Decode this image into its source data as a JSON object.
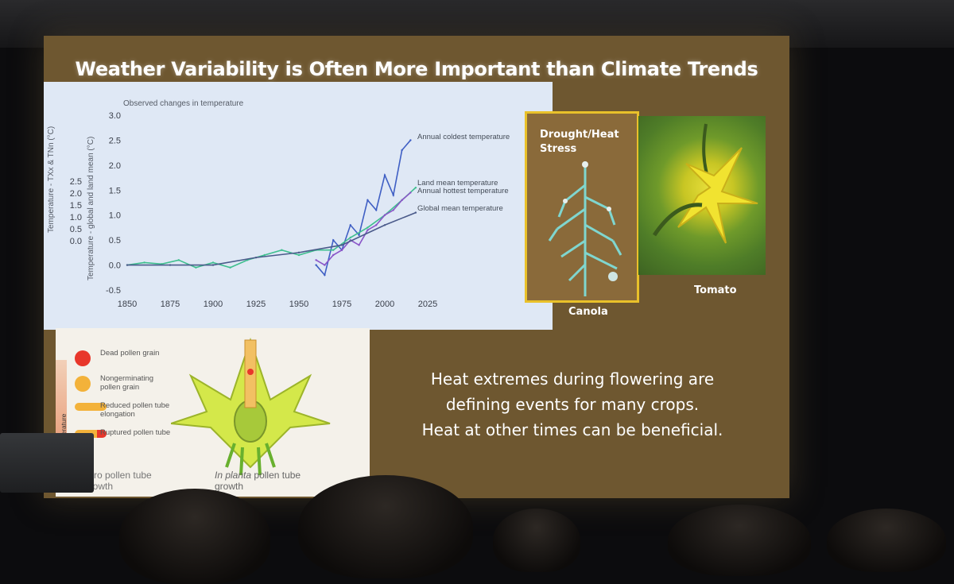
{
  "slide": {
    "title": "Weather Variability is Often More Important than Climate Trends",
    "quote_lines": [
      "Heat extremes during flowering are",
      "defining events for many crops.",
      "Heat at other times can be beneficial."
    ]
  },
  "chart_data": {
    "type": "line",
    "title": "Observed changes in temperature",
    "ylabel_left": "Temperature - TXx & TNn (°C)",
    "ylabel_right": "Temperature - global and land mean (°C)",
    "x_ticks": [
      "1850",
      "1875",
      "1900",
      "1925",
      "1950",
      "1975",
      "2000",
      "2025"
    ],
    "y_ticks_left": [
      "0.0",
      "0.5",
      "1.0",
      "1.5",
      "2.0",
      "2.5"
    ],
    "y_ticks_right": [
      "-0.5",
      "0.0",
      "0.5",
      "1.0",
      "1.5",
      "2.0",
      "2.5",
      "3.0"
    ],
    "xlim": [
      1850,
      2025
    ],
    "ylim": [
      -0.5,
      3.0
    ],
    "series": [
      {
        "name": "Annual coldest temperature",
        "color": "#3f5fc4",
        "x": [
          1960,
          1965,
          1970,
          1975,
          1980,
          1985,
          1990,
          1995,
          2000,
          2005,
          2010,
          2015
        ],
        "y": [
          0.0,
          -0.2,
          0.5,
          0.3,
          0.8,
          0.6,
          1.3,
          1.1,
          1.8,
          1.4,
          2.3,
          2.5
        ]
      },
      {
        "name": "Land mean temperature",
        "color": "#3fbf8f",
        "x": [
          1850,
          1860,
          1870,
          1880,
          1890,
          1900,
          1910,
          1920,
          1930,
          1940,
          1950,
          1960,
          1970,
          1980,
          1990,
          2000,
          2010,
          2018
        ],
        "y": [
          0.0,
          0.05,
          0.02,
          0.1,
          -0.05,
          0.05,
          -0.05,
          0.1,
          0.2,
          0.3,
          0.2,
          0.3,
          0.3,
          0.55,
          0.75,
          1.0,
          1.3,
          1.55
        ]
      },
      {
        "name": "Annual hottest temperature",
        "color": "#8a55c8",
        "x": [
          1960,
          1965,
          1970,
          1975,
          1980,
          1985,
          1990,
          1995,
          2000,
          2005,
          2010,
          2015
        ],
        "y": [
          0.1,
          0.0,
          0.2,
          0.3,
          0.5,
          0.4,
          0.7,
          0.8,
          1.0,
          1.1,
          1.3,
          1.45
        ]
      },
      {
        "name": "Global mean temperature",
        "color": "#4a5a8a",
        "x": [
          1850,
          1875,
          1900,
          1925,
          1950,
          1975,
          2000,
          2018
        ],
        "y": [
          0.0,
          0.0,
          0.0,
          0.15,
          0.25,
          0.4,
          0.8,
          1.05
        ]
      }
    ],
    "grid": false
  },
  "crops": {
    "canola_caption": "Canola",
    "canola_stress_label": "Drought/Heat Stress",
    "tomato_caption": "Tomato"
  },
  "flower_figure": {
    "legend": [
      {
        "label": "Dead pollen grain",
        "color": "#e8372b"
      },
      {
        "label": "Nongerminating pollen grain",
        "color": "#f3b23a"
      },
      {
        "label": "Reduced pollen tube elongation",
        "color": "#f3b23a"
      },
      {
        "label": "Ruptured pollen tube",
        "color": "#f3b23a"
      }
    ],
    "side_label": "High Temperature",
    "invitro_caption": "vitro pollen tube growth",
    "inplanta_caption_italic": "In planta",
    "inplanta_caption": "pollen tube growth"
  }
}
